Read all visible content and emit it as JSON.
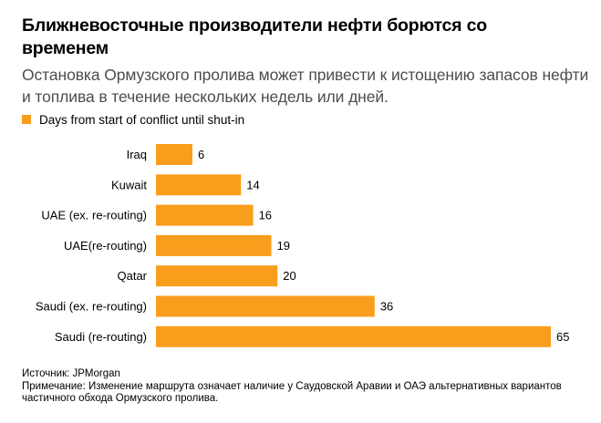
{
  "header": {
    "title": "Ближневосточные производители нефти борются со временем",
    "subtitle": "Остановка Ормузского пролива может привести к истощению запасов нефти и топлива в течение нескольких недель или дней."
  },
  "legend": {
    "label": "Days from start of conflict until shut-in",
    "color": "#f99d1c"
  },
  "chart_data": {
    "type": "bar",
    "orientation": "horizontal",
    "categories": [
      "Iraq",
      "Kuwait",
      "UAE (ex. re-routing)",
      "UAE(re-routing)",
      "Qatar",
      "Saudi (ex. re-routing)",
      "Saudi (re-routing)"
    ],
    "series": [
      {
        "name": "Days from start of conflict until shut-in",
        "values": [
          6,
          14,
          16,
          19,
          20,
          36,
          65
        ]
      }
    ],
    "xlim": [
      0,
      65
    ],
    "grid": false,
    "legend_position": "top-left",
    "bar_color": "#f99d1c"
  },
  "footer": {
    "source": "Источник: JPMorgan",
    "note": "Примечание: Изменение маршрута означает наличие у Саудовской Аравии и ОАЭ альтернативных вариантов частичного обхода Ормузского пролива."
  }
}
